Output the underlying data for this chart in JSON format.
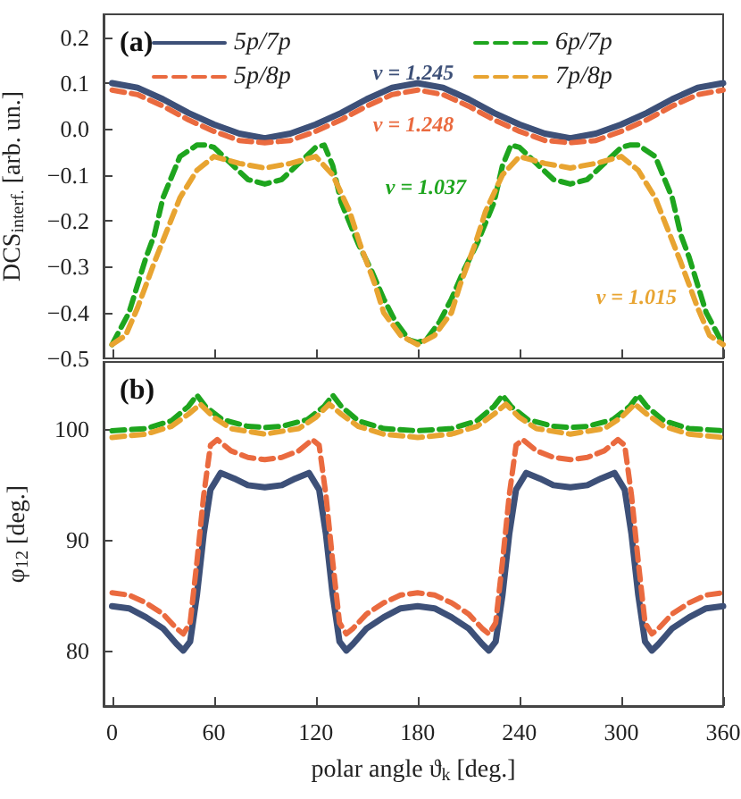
{
  "chart_data": [
    {
      "type": "line",
      "title": "(a)",
      "ylabel": "DCS$_{interf.}$ [arb. un.]",
      "marker": "none",
      "legend": "top",
      "grid": false,
      "tick_labels": "y",
      "xlim": [
        -5,
        360
      ],
      "xticks": [
        0,
        60,
        120,
        180,
        240,
        300,
        360
      ],
      "ylim": [
        -0.5,
        0.25
      ],
      "yticks": [
        {
          "value": -0.5,
          "label": "−0.5"
        },
        {
          "value": -0.4,
          "label": "−0.4"
        },
        {
          "value": -0.3,
          "label": "−0.3"
        },
        {
          "value": -0.2,
          "label": "−0.2"
        },
        {
          "value": -0.1,
          "label": "−0.1"
        },
        {
          "value": 0,
          "label": "0.0"
        },
        0.1,
        0.2
      ],
      "series": [
        {
          "name": "5p/7p",
          "color": "#3d5078",
          "line_style": "solid",
          "x": [
            0,
            15,
            30,
            45,
            60,
            75,
            90,
            105,
            120,
            135,
            150,
            165,
            180,
            195,
            210,
            225,
            240,
            255,
            270,
            285,
            300,
            315,
            330,
            345,
            360
          ],
          "values": [
            0.1,
            0.09,
            0.065,
            0.035,
            0.01,
            -0.01,
            -0.02,
            -0.01,
            0.01,
            0.035,
            0.065,
            0.09,
            0.1,
            0.09,
            0.065,
            0.035,
            0.01,
            -0.01,
            -0.02,
            -0.01,
            0.01,
            0.035,
            0.065,
            0.09,
            0.1
          ]
        },
        {
          "name": "5p/8p",
          "color": "#ea6a3f",
          "line_style": "dashed",
          "x": [
            0,
            15,
            30,
            45,
            60,
            75,
            90,
            105,
            120,
            135,
            150,
            165,
            180,
            195,
            210,
            225,
            240,
            255,
            270,
            285,
            300,
            315,
            330,
            345,
            360
          ],
          "values": [
            0.085,
            0.075,
            0.05,
            0.02,
            -0.005,
            -0.025,
            -0.03,
            -0.025,
            -0.005,
            0.02,
            0.05,
            0.075,
            0.085,
            0.075,
            0.05,
            0.02,
            -0.005,
            -0.025,
            -0.03,
            -0.025,
            -0.005,
            0.02,
            0.05,
            0.075,
            0.085
          ]
        },
        {
          "name": "6p/7p",
          "color": "#1ea51e",
          "line_style": "dashed",
          "x": [
            0,
            10,
            20,
            25,
            30,
            40,
            50,
            55,
            60,
            70,
            80,
            90,
            100,
            110,
            120,
            125,
            130,
            135,
            145,
            153,
            160,
            167,
            175,
            180,
            185,
            193,
            200,
            207,
            215,
            225,
            230,
            235,
            240,
            250,
            260,
            270,
            280,
            290,
            300,
            305,
            310,
            320,
            330,
            335,
            340,
            350,
            360
          ],
          "values": [
            -0.47,
            -0.4,
            -0.28,
            -0.23,
            -0.15,
            -0.06,
            -0.035,
            -0.035,
            -0.04,
            -0.075,
            -0.11,
            -0.12,
            -0.11,
            -0.075,
            -0.04,
            -0.035,
            -0.08,
            -0.16,
            -0.25,
            -0.31,
            -0.37,
            -0.42,
            -0.46,
            -0.465,
            -0.46,
            -0.42,
            -0.37,
            -0.31,
            -0.25,
            -0.16,
            -0.08,
            -0.035,
            -0.04,
            -0.075,
            -0.11,
            -0.12,
            -0.11,
            -0.075,
            -0.04,
            -0.035,
            -0.035,
            -0.06,
            -0.15,
            -0.23,
            -0.28,
            -0.4,
            -0.47
          ]
        },
        {
          "name": "7p/8p",
          "color": "#e8a431",
          "line_style": "dashed",
          "x": [
            0,
            8,
            15,
            25,
            40,
            50,
            60,
            75,
            90,
            105,
            120,
            130,
            140,
            146,
            155,
            160,
            170,
            180,
            190,
            200,
            205,
            214,
            220,
            230,
            240,
            255,
            270,
            285,
            300,
            310,
            320,
            335,
            345,
            352,
            360
          ],
          "values": [
            -0.47,
            -0.45,
            -0.39,
            -0.29,
            -0.15,
            -0.09,
            -0.06,
            -0.075,
            -0.085,
            -0.075,
            -0.06,
            -0.1,
            -0.18,
            -0.25,
            -0.34,
            -0.4,
            -0.45,
            -0.47,
            -0.45,
            -0.4,
            -0.34,
            -0.25,
            -0.18,
            -0.1,
            -0.06,
            -0.075,
            -0.085,
            -0.075,
            -0.06,
            -0.09,
            -0.15,
            -0.29,
            -0.39,
            -0.45,
            -0.47
          ]
        }
      ],
      "annotations": [
        "ν = 1.245",
        "ν = 1.248",
        "ν = 1.037",
        "ν = 1.015"
      ]
    },
    {
      "type": "line",
      "title": "(b)",
      "xlabel": "polar angle ϑ$_{k}$ [deg.]",
      "ylabel": "φ$_{12}$ [deg.]",
      "marker": "none",
      "grid": false,
      "xlim": [
        -5,
        360
      ],
      "xticks": [
        0,
        60,
        120,
        180,
        240,
        300,
        360
      ],
      "ylim": [
        75,
        106
      ],
      "yticks": [
        80,
        90,
        100
      ],
      "series": [
        {
          "color": "#3d5078",
          "line_style": "solid",
          "x": [
            0,
            10,
            20,
            30,
            38,
            42,
            46,
            50,
            54,
            58,
            64,
            72,
            80,
            90,
            100,
            108,
            116,
            122,
            126,
            130,
            134,
            138,
            142,
            150,
            160,
            170,
            180,
            190,
            200,
            210,
            218,
            222,
            226,
            230,
            234,
            238,
            244,
            252,
            260,
            270,
            280,
            288,
            296,
            302,
            306,
            310,
            314,
            318,
            322,
            330,
            340,
            350,
            360
          ],
          "values": [
            84,
            83.8,
            83,
            82,
            80.6,
            80,
            80.8,
            85,
            90.5,
            94.5,
            96,
            95.5,
            94.9,
            94.7,
            94.9,
            95.5,
            96,
            94.5,
            90.5,
            85,
            80.8,
            80,
            80.6,
            82,
            83,
            83.8,
            84,
            83.8,
            83,
            82,
            80.6,
            80,
            80.8,
            85,
            90.5,
            94.5,
            96,
            95.5,
            94.9,
            94.7,
            94.9,
            95.5,
            96,
            94.5,
            90.5,
            85,
            80.8,
            80,
            80.6,
            82,
            83,
            83.8,
            84
          ]
        },
        {
          "color": "#ea6a3f",
          "line_style": "dashed",
          "x": [
            0,
            10,
            20,
            30,
            38,
            42,
            46,
            50,
            54,
            58,
            62,
            70,
            80,
            90,
            100,
            110,
            118,
            122,
            126,
            130,
            134,
            138,
            142,
            150,
            160,
            170,
            180,
            190,
            200,
            210,
            218,
            222,
            226,
            230,
            234,
            238,
            242,
            250,
            260,
            270,
            280,
            290,
            298,
            302,
            306,
            310,
            314,
            318,
            322,
            330,
            340,
            350,
            360
          ],
          "values": [
            85.2,
            85,
            84.3,
            83.3,
            82,
            81.5,
            82.5,
            88,
            94,
            98.5,
            99,
            98,
            97.4,
            97.2,
            97.4,
            98,
            99,
            98.5,
            94,
            88,
            82.5,
            81.5,
            82,
            83.3,
            84.3,
            85,
            85.2,
            85,
            84.3,
            83.3,
            82,
            81.5,
            82.5,
            88,
            94,
            98.5,
            99,
            98,
            97.4,
            97.2,
            97.4,
            98,
            99,
            98.5,
            94,
            88,
            82.5,
            81.5,
            82,
            83.3,
            84.3,
            85,
            85.2
          ]
        },
        {
          "color": "#1ea51e",
          "line_style": "dashed",
          "x": [
            0,
            20,
            35,
            45,
            50,
            55,
            65,
            80,
            90,
            100,
            115,
            125,
            130,
            135,
            145,
            160,
            180,
            200,
            215,
            225,
            230,
            235,
            245,
            260,
            270,
            280,
            295,
            305,
            310,
            315,
            325,
            340,
            360
          ],
          "values": [
            99.8,
            100,
            100.7,
            102,
            103,
            102,
            100.8,
            100.2,
            100.1,
            100.2,
            100.8,
            102,
            103,
            102,
            100.7,
            100,
            99.8,
            100,
            100.7,
            102,
            103,
            102,
            100.8,
            100.2,
            100.1,
            100.2,
            100.8,
            102,
            103,
            102,
            100.7,
            100,
            99.8
          ]
        },
        {
          "color": "#e8a431",
          "line_style": "dashed",
          "x": [
            0,
            20,
            35,
            45,
            52,
            60,
            70,
            90,
            110,
            120,
            128,
            135,
            145,
            160,
            180,
            200,
            215,
            225,
            232,
            240,
            250,
            270,
            290,
            300,
            308,
            315,
            325,
            340,
            360
          ],
          "values": [
            99.2,
            99.5,
            100.2,
            101.3,
            102.2,
            101,
            100,
            99.5,
            100,
            101,
            102.2,
            101.3,
            100.2,
            99.5,
            99.2,
            99.5,
            100.2,
            101.3,
            102.2,
            101,
            100,
            99.5,
            100,
            101,
            102.2,
            101.3,
            100.2,
            99.5,
            99.2
          ]
        }
      ]
    }
  ]
}
